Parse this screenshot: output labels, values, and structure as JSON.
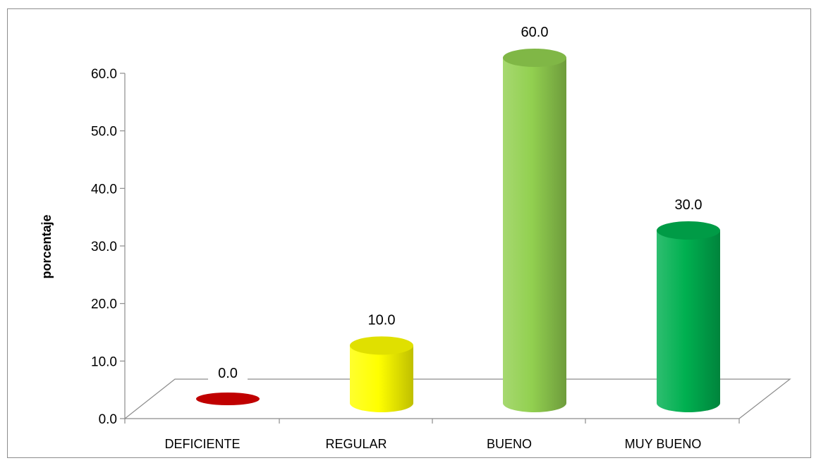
{
  "chart_data": {
    "type": "bar",
    "title": "",
    "xlabel": "",
    "ylabel": "porcentaje",
    "categories": [
      "DEFICIENTE",
      "REGULAR",
      "BUENO",
      "MUY BUENO"
    ],
    "values": [
      0.0,
      10.0,
      60.0,
      30.0
    ],
    "data_labels": [
      "0.0",
      "10.0",
      "60.0",
      "30.0"
    ],
    "y_ticks": [
      "0.0",
      "10.0",
      "20.0",
      "30.0",
      "40.0",
      "50.0",
      "60.0"
    ],
    "ylim": [
      0,
      60
    ],
    "grid": false,
    "legend": "none",
    "bar_shape": "cylinder",
    "colors": {
      "DEFICIENTE": "#c00000",
      "REGULAR": "#ffff00",
      "BUENO": "#92d050",
      "MUY BUENO": "#00b050"
    }
  }
}
